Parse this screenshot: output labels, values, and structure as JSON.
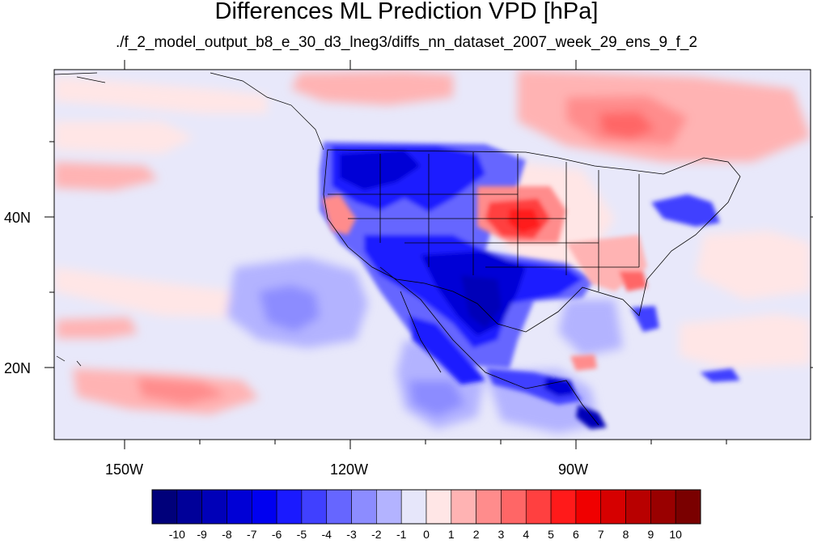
{
  "title": "Differences ML Prediction VPD [hPa]",
  "subtitle": "./f_2_model_output_b8_e_30_d3_lneg3/diffs_nn_dataset_2007_week_29_ens_9_f_2",
  "map": {
    "lon_labels": [
      "150W",
      "120W",
      "90W"
    ],
    "lat_labels": [
      "40N",
      "20N"
    ]
  },
  "colorbar": {
    "labels": [
      "-10",
      "-9",
      "-8",
      "-7",
      "-6",
      "-5",
      "-4",
      "-3",
      "-2",
      "-1",
      "0",
      "1",
      "2",
      "3",
      "4",
      "5",
      "6",
      "7",
      "8",
      "9",
      "10"
    ],
    "colors": [
      "#00007a",
      "#000099",
      "#0000b8",
      "#0000d6",
      "#0000f0",
      "#1a1aff",
      "#4040ff",
      "#6666ff",
      "#8c8cff",
      "#b3b3ff",
      "#e6e6fa",
      "#ffe6e6",
      "#ffb3b3",
      "#ff8c8c",
      "#ff6666",
      "#ff4040",
      "#ff1a1a",
      "#f00000",
      "#d60000",
      "#b80000",
      "#990000",
      "#7a0000"
    ]
  }
}
